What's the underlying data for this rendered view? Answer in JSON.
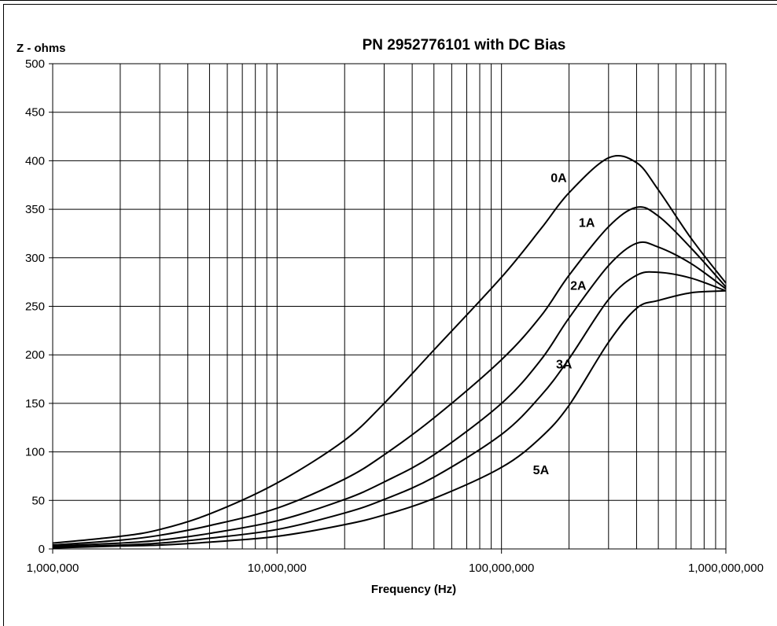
{
  "chart_data": {
    "type": "line",
    "title": "PN 2952776101 with DC Bias",
    "ylabel": "Z - ohms",
    "xlabel": "Frequency (Hz)",
    "xscale": "log",
    "xlim": [
      1000000,
      1000000000
    ],
    "ylim": [
      0,
      500
    ],
    "grid": true,
    "legend": "inline labels on curves",
    "x_ticks": [
      1000000,
      10000000,
      100000000,
      1000000000
    ],
    "x_tick_labels": [
      "1,000,000",
      "10,000,000",
      "100,000,000",
      "1,000,000,000"
    ],
    "y_ticks": [
      0,
      50,
      100,
      150,
      200,
      250,
      300,
      350,
      400,
      450,
      500
    ],
    "y_tick_labels": [
      "0",
      "50",
      "100",
      "150",
      "200",
      "250",
      "300",
      "350",
      "400",
      "450",
      "500"
    ],
    "x": [
      1000000,
      2000000,
      3000000,
      5000000,
      10000000,
      20000000,
      30000000,
      50000000,
      100000000,
      150000000,
      200000000,
      300000000,
      400000000,
      500000000,
      700000000,
      1000000000
    ],
    "series": [
      {
        "name": "0A",
        "values": [
          6,
          13,
          20,
          36,
          68,
          112,
          150,
          205,
          280,
          330,
          367,
          403,
          398,
          370,
          320,
          274
        ]
      },
      {
        "name": "1A",
        "values": [
          4,
          9,
          14,
          24,
          42,
          72,
          97,
          135,
          195,
          240,
          282,
          332,
          352,
          343,
          310,
          270
        ]
      },
      {
        "name": "2A",
        "values": [
          3,
          6,
          9,
          16,
          29,
          51,
          69,
          97,
          150,
          195,
          238,
          292,
          315,
          311,
          294,
          268
        ]
      },
      {
        "name": "3A",
        "values": [
          2,
          4,
          6,
          11,
          20,
          37,
          51,
          74,
          118,
          158,
          196,
          257,
          282,
          285,
          279,
          266
        ]
      },
      {
        "name": "5A",
        "values": [
          1,
          3,
          4,
          7,
          13,
          25,
          35,
          52,
          84,
          115,
          148,
          213,
          248,
          256,
          264,
          266
        ]
      }
    ]
  }
}
